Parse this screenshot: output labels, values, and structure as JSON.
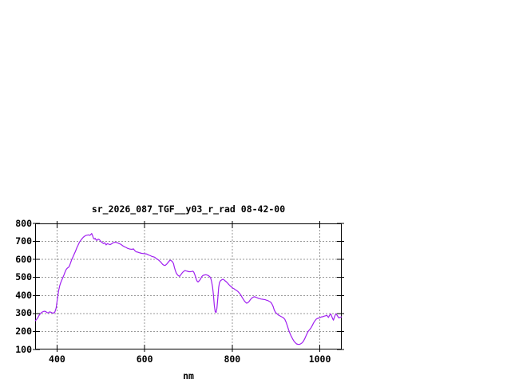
{
  "window": {
    "background": "#ffffff"
  },
  "chart_data": {
    "type": "line",
    "title": "sr_2026_087_TGF__y03_r_rad 08-42-00",
    "xlabel": "nm",
    "ylabel": "",
    "xlim": [
      350,
      1050
    ],
    "ylim": [
      100,
      800
    ],
    "x_ticks": [
      400,
      600,
      800,
      1000
    ],
    "y_ticks": [
      100,
      200,
      300,
      400,
      500,
      600,
      700,
      800
    ],
    "grid": true,
    "legend": "none",
    "line_color": "#a020f0",
    "grid_color": "#999999",
    "border_color": "#000000",
    "series": [
      {
        "name": "sr_2026_087_TGF__y03_r_rad",
        "points": [
          [
            350,
            258
          ],
          [
            353,
            266
          ],
          [
            356,
            276
          ],
          [
            359,
            289
          ],
          [
            362,
            299
          ],
          [
            365,
            306
          ],
          [
            368,
            310
          ],
          [
            371,
            312
          ],
          [
            374,
            311
          ],
          [
            377,
            305
          ],
          [
            380,
            303
          ],
          [
            383,
            309
          ],
          [
            386,
            307
          ],
          [
            389,
            303
          ],
          [
            392,
            302
          ],
          [
            395,
            308
          ],
          [
            398,
            330
          ],
          [
            400,
            365
          ],
          [
            402,
            400
          ],
          [
            404,
            430
          ],
          [
            406,
            452
          ],
          [
            408,
            468
          ],
          [
            410,
            480
          ],
          [
            412,
            492
          ],
          [
            414,
            503
          ],
          [
            416,
            515
          ],
          [
            418,
            528
          ],
          [
            420,
            540
          ],
          [
            422,
            548
          ],
          [
            424,
            553
          ],
          [
            426,
            556
          ],
          [
            428,
            562
          ],
          [
            430,
            575
          ],
          [
            433,
            595
          ],
          [
            436,
            612
          ],
          [
            439,
            628
          ],
          [
            442,
            645
          ],
          [
            445,
            663
          ],
          [
            448,
            679
          ],
          [
            451,
            695
          ],
          [
            454,
            706
          ],
          [
            457,
            715
          ],
          [
            460,
            723
          ],
          [
            463,
            729
          ],
          [
            466,
            733
          ],
          [
            469,
            735
          ],
          [
            472,
            736
          ],
          [
            475,
            734
          ],
          [
            477,
            738
          ],
          [
            479,
            744
          ],
          [
            481,
            733
          ],
          [
            483,
            718
          ],
          [
            485,
            713
          ],
          [
            487,
            717
          ],
          [
            489,
            709
          ],
          [
            491,
            705
          ],
          [
            493,
            711
          ],
          [
            495,
            712
          ],
          [
            497,
            709
          ],
          [
            500,
            700
          ],
          [
            503,
            694
          ],
          [
            506,
            688
          ],
          [
            509,
            693
          ],
          [
            512,
            681
          ],
          [
            515,
            688
          ],
          [
            518,
            685
          ],
          [
            521,
            682
          ],
          [
            524,
            686
          ],
          [
            527,
            691
          ],
          [
            530,
            694
          ],
          [
            533,
            696
          ],
          [
            536,
            694
          ],
          [
            539,
            691
          ],
          [
            542,
            688
          ],
          [
            545,
            685
          ],
          [
            548,
            680
          ],
          [
            551,
            674
          ],
          [
            554,
            670
          ],
          [
            557,
            667
          ],
          [
            560,
            663
          ],
          [
            563,
            660
          ],
          [
            566,
            658
          ],
          [
            569,
            657
          ],
          [
            572,
            656
          ],
          [
            574,
            659
          ],
          [
            576,
            654
          ],
          [
            578,
            648
          ],
          [
            581,
            642
          ],
          [
            584,
            641
          ],
          [
            587,
            638
          ],
          [
            590,
            636
          ],
          [
            593,
            634
          ],
          [
            596,
            633
          ],
          [
            599,
            632
          ],
          [
            602,
            631
          ],
          [
            605,
            630
          ],
          [
            608,
            626
          ],
          [
            611,
            623
          ],
          [
            614,
            620
          ],
          [
            617,
            616
          ],
          [
            620,
            615
          ],
          [
            623,
            612
          ],
          [
            626,
            606
          ],
          [
            629,
            601
          ],
          [
            632,
            596
          ],
          [
            635,
            590
          ],
          [
            638,
            582
          ],
          [
            641,
            573
          ],
          [
            644,
            568
          ],
          [
            647,
            567
          ],
          [
            650,
            573
          ],
          [
            653,
            582
          ],
          [
            656,
            591
          ],
          [
            658,
            596
          ],
          [
            660,
            594
          ],
          [
            662,
            591
          ],
          [
            664,
            585
          ],
          [
            666,
            577
          ],
          [
            668,
            556
          ],
          [
            670,
            540
          ],
          [
            672,
            526
          ],
          [
            674,
            518
          ],
          [
            676,
            512
          ],
          [
            678,
            509
          ],
          [
            680,
            506
          ],
          [
            682,
            513
          ],
          [
            684,
            519
          ],
          [
            686,
            526
          ],
          [
            688,
            531
          ],
          [
            690,
            535
          ],
          [
            692,
            538
          ],
          [
            695,
            536
          ],
          [
            698,
            534
          ],
          [
            701,
            532
          ],
          [
            704,
            532
          ],
          [
            707,
            533
          ],
          [
            710,
            535
          ],
          [
            712,
            530
          ],
          [
            714,
            519
          ],
          [
            716,
            505
          ],
          [
            718,
            489
          ],
          [
            720,
            479
          ],
          [
            722,
            475
          ],
          [
            724,
            480
          ],
          [
            726,
            486
          ],
          [
            728,
            493
          ],
          [
            730,
            503
          ],
          [
            732,
            509
          ],
          [
            734,
            512
          ],
          [
            737,
            514
          ],
          [
            740,
            515
          ],
          [
            743,
            513
          ],
          [
            746,
            510
          ],
          [
            749,
            503
          ],
          [
            751,
            495
          ],
          [
            753,
            475
          ],
          [
            755,
            448
          ],
          [
            757,
            405
          ],
          [
            759,
            345
          ],
          [
            761,
            310
          ],
          [
            763,
            305
          ],
          [
            765,
            330
          ],
          [
            767,
            385
          ],
          [
            769,
            445
          ],
          [
            771,
            472
          ],
          [
            773,
            481
          ],
          [
            775,
            485
          ],
          [
            777,
            488
          ],
          [
            779,
            490
          ],
          [
            781,
            487
          ],
          [
            783,
            483
          ],
          [
            785,
            479
          ],
          [
            787,
            475
          ],
          [
            789,
            470
          ],
          [
            791,
            464
          ],
          [
            793,
            459
          ],
          [
            795,
            454
          ],
          [
            798,
            448
          ],
          [
            801,
            441
          ],
          [
            804,
            437
          ],
          [
            807,
            432
          ],
          [
            810,
            428
          ],
          [
            813,
            422
          ],
          [
            816,
            414
          ],
          [
            819,
            405
          ],
          [
            822,
            392
          ],
          [
            825,
            380
          ],
          [
            828,
            369
          ],
          [
            831,
            361
          ],
          [
            833,
            357
          ],
          [
            835,
            359
          ],
          [
            837,
            363
          ],
          [
            839,
            368
          ],
          [
            841,
            375
          ],
          [
            843,
            381
          ],
          [
            845,
            386
          ],
          [
            847,
            389
          ],
          [
            849,
            392
          ],
          [
            851,
            393
          ],
          [
            854,
            390
          ],
          [
            857,
            387
          ],
          [
            860,
            384
          ],
          [
            863,
            382
          ],
          [
            866,
            380
          ],
          [
            869,
            379
          ],
          [
            872,
            378
          ],
          [
            875,
            377
          ],
          [
            878,
            374
          ],
          [
            881,
            372
          ],
          [
            884,
            368
          ],
          [
            887,
            364
          ],
          [
            890,
            356
          ],
          [
            893,
            341
          ],
          [
            896,
            319
          ],
          [
            899,
            305
          ],
          [
            902,
            299
          ],
          [
            905,
            292
          ],
          [
            908,
            288
          ],
          [
            911,
            284
          ],
          [
            914,
            280
          ],
          [
            917,
            276
          ],
          [
            920,
            268
          ],
          [
            923,
            252
          ],
          [
            926,
            230
          ],
          [
            929,
            207
          ],
          [
            932,
            188
          ],
          [
            935,
            172
          ],
          [
            938,
            158
          ],
          [
            941,
            146
          ],
          [
            944,
            137
          ],
          [
            947,
            131
          ],
          [
            950,
            129
          ],
          [
            953,
            128
          ],
          [
            956,
            131
          ],
          [
            959,
            136
          ],
          [
            962,
            144
          ],
          [
            965,
            157
          ],
          [
            968,
            173
          ],
          [
            971,
            190
          ],
          [
            974,
            203
          ],
          [
            977,
            211
          ],
          [
            980,
            221
          ],
          [
            983,
            234
          ],
          [
            986,
            249
          ],
          [
            989,
            260
          ],
          [
            992,
            269
          ],
          [
            995,
            273
          ],
          [
            998,
            275
          ],
          [
            1001,
            278
          ],
          [
            1004,
            281
          ],
          [
            1007,
            282
          ],
          [
            1010,
            285
          ],
          [
            1013,
            287
          ],
          [
            1016,
            290
          ],
          [
            1018,
            283
          ],
          [
            1020,
            278
          ],
          [
            1022,
            289
          ],
          [
            1025,
            297
          ],
          [
            1027,
            285
          ],
          [
            1029,
            272
          ],
          [
            1031,
            263
          ],
          [
            1033,
            277
          ],
          [
            1035,
            291
          ],
          [
            1037,
            297
          ],
          [
            1039,
            291
          ],
          [
            1041,
            284
          ],
          [
            1043,
            276
          ],
          [
            1045,
            277
          ],
          [
            1047,
            279
          ],
          [
            1050,
            282
          ]
        ]
      }
    ]
  }
}
